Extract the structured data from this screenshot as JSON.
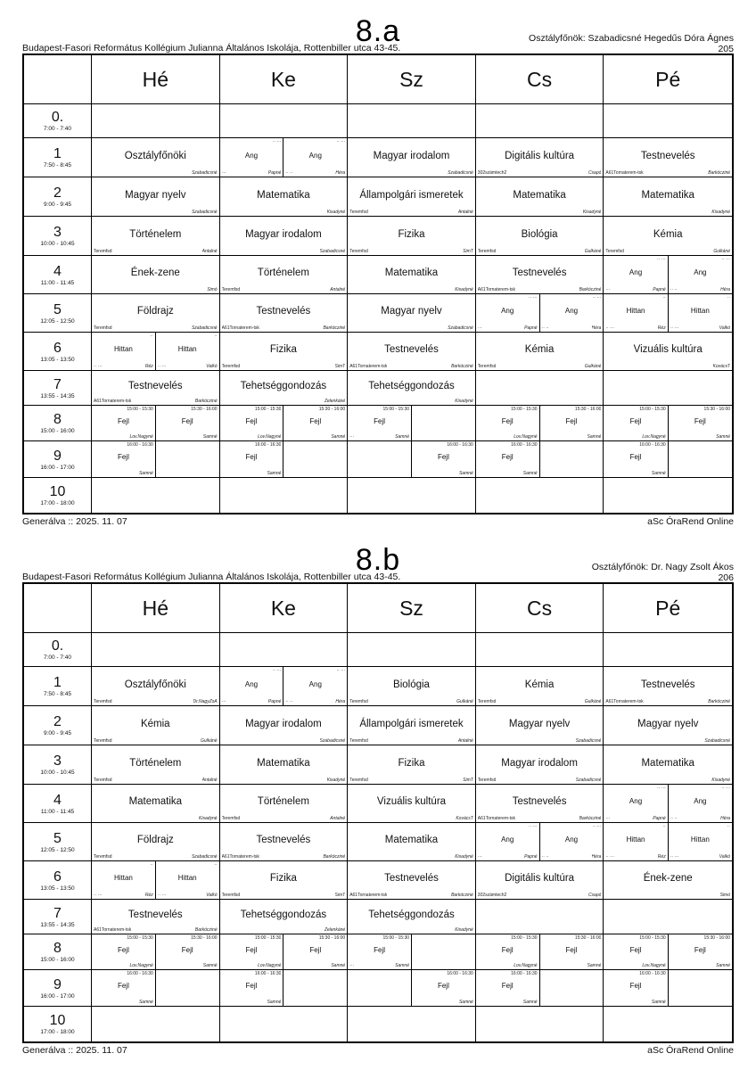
{
  "page": {
    "background": "#ffffff",
    "line_color": "#000000"
  },
  "footer": {
    "generated": "Generálva :: 2025. 11. 07",
    "app": "aSc ÓraRend Online"
  },
  "days": [
    "Hé",
    "Ke",
    "Sz",
    "Cs",
    "Pé"
  ],
  "periods": [
    {
      "label": "0.",
      "time": "7:00 - 7:40"
    },
    {
      "label": "1",
      "time": "7:50 - 8:45"
    },
    {
      "label": "2",
      "time": "9:00 - 9:45"
    },
    {
      "label": "3",
      "time": "10:00 - 10:45"
    },
    {
      "label": "4",
      "time": "11:00 - 11:45"
    },
    {
      "label": "5",
      "time": "12:05 - 12:50"
    },
    {
      "label": "6",
      "time": "13:05 - 13:50"
    },
    {
      "label": "7",
      "time": "13:55 - 14:35"
    },
    {
      "label": "8",
      "time": "15:00 - 16:00"
    },
    {
      "label": "9",
      "time": "16:00 - 17:00"
    },
    {
      "label": "10",
      "time": "17:00 - 18:00"
    }
  ],
  "timetables": [
    {
      "title": "8.a",
      "school": "Budapest-Fasori Református Kollégium Julianna Általános Iskolája, Rottenbiller utca 43-45.",
      "head_teacher": "Osztályfőnök: Szabadicsné Hegedűs Dóra Ágnes",
      "room": "205",
      "rows": [
        [
          null,
          null,
          null,
          null,
          null
        ],
        [
          {
            "s": "Osztályfőnöki",
            "br": "Szabadicsné"
          },
          {
            "split": [
              {
                "s": "Ang",
                "tr": "·· ···",
                "bl": "···",
                "br": "Papné"
              },
              {
                "s": "Ang",
                "tr": "·· ···",
                "bl": "·· ··",
                "br": "Héra"
              }
            ]
          },
          {
            "s": "Magyar irodalom",
            "br": "Szabadicsné"
          },
          {
            "s": "Digitális kultúra",
            "bl": "302számtech2",
            "br": "Csapó"
          },
          {
            "s": "Testnevelés",
            "bl": "A61Tornaterem-tsk",
            "br": "Barkócziné"
          }
        ],
        [
          {
            "s": "Magyar nyelv",
            "br": "Szabadicsné"
          },
          {
            "s": "Matematika",
            "br": "Kisadyné"
          },
          {
            "s": "Állampolgári ismeretek",
            "bl": "Teremfsd",
            "br": "Antalné"
          },
          {
            "s": "Matematika",
            "br": "Kisadyné"
          },
          {
            "s": "Matematika",
            "br": "Kisadyné"
          }
        ],
        [
          {
            "s": "Történelem",
            "bl": "Teremfsd",
            "br": "Antalné"
          },
          {
            "s": "Magyar irodalom",
            "br": "Szabadicsné"
          },
          {
            "s": "Fizika",
            "bl": "Teremfsd",
            "br": "SimT"
          },
          {
            "s": "Biológia",
            "bl": "Teremfsd",
            "br": "Gulkáné"
          },
          {
            "s": "Kémia",
            "bl": "Teremfsd",
            "br": "Gulkáné"
          }
        ],
        [
          {
            "s": "Ének-zene",
            "br": "Simó"
          },
          {
            "s": "Történelem",
            "bl": "Teremfsd",
            "br": "Antalné"
          },
          {
            "s": "Matematika",
            "br": "Kisadyné"
          },
          {
            "s": "Testnevelés",
            "bl": "A61Tornaterem-tsk",
            "br": "Barkócziné"
          },
          {
            "split": [
              {
                "s": "Ang",
                "tr": "·· ···",
                "bl": "···",
                "br": "Papné"
              },
              {
                "s": "Ang",
                "tr": "·· ···",
                "bl": "·· ··",
                "br": "Héra"
              }
            ]
          }
        ],
        [
          {
            "s": "Földrajz",
            "bl": "Teremfsd",
            "br": "Szabadicsné"
          },
          {
            "s": "Testnevelés",
            "bl": "A61Tornaterem-tsk",
            "br": "Barkócziné"
          },
          {
            "s": "Magyar nyelv",
            "br": "Szabadicsné"
          },
          {
            "split": [
              {
                "s": "Ang",
                "tr": "·· ···",
                "bl": "···",
                "br": "Papné"
              },
              {
                "s": "Ang",
                "tr": "·· ···",
                "bl": "·· ··",
                "br": "Héra"
              }
            ]
          },
          {
            "split": [
              {
                "s": "Hittan",
                "tr": "··",
                "bl": "·· ···",
                "br": "Réz"
              },
              {
                "s": "Hittan",
                "tr": "··",
                "bl": "·· ···",
                "br": "Valkó"
              }
            ]
          }
        ],
        [
          {
            "split": [
              {
                "s": "Hittan",
                "tr": "··",
                "bl": "·· ···",
                "br": "Réz"
              },
              {
                "s": "Hittan",
                "tr": "··",
                "bl": "·· ···",
                "br": "Valkó"
              }
            ]
          },
          {
            "s": "Fizika",
            "bl": "Teremfsd",
            "br": "SimT"
          },
          {
            "s": "Testnevelés",
            "bl": "A61Tornaterem-tsk",
            "br": "Barkócziné"
          },
          {
            "s": "Kémia",
            "bl": "Teremfsd",
            "br": "Gulkáné"
          },
          {
            "s": "Vizuális kultúra",
            "br": "KovácsT"
          }
        ],
        [
          {
            "s": "Testnevelés",
            "bl": "A61Tornaterem-tsk",
            "br": "Barkócziné"
          },
          {
            "s": "Tehetséggondozás",
            "br": "Zelenkáné"
          },
          {
            "s": "Tehetséggondozás",
            "br": "Kisadyné"
          },
          null,
          null
        ],
        [
          {
            "split": [
              {
                "s": "Fejl",
                "tr": "15:00 - 15:30",
                "br": "Lov.Nagyné"
              },
              {
                "s": "Fejl",
                "tr": "15:30 - 16:00",
                "br": "Samné"
              }
            ]
          },
          {
            "split": [
              {
                "s": "Fejl",
                "tr": "15:00 - 15:30",
                "br": "Lov.Nagyné"
              },
              {
                "s": "Fejl",
                "tr": "15:30 - 16:00",
                "br": "Samné"
              }
            ]
          },
          {
            "split": [
              {
                "s": "Fejl",
                "tr": "15:00 - 15:30",
                "bl": "···",
                "br": "Samné"
              },
              null
            ]
          },
          {
            "split": [
              {
                "s": "Fejl",
                "tr": "15:00 - 15:30",
                "br": "Lov.Nagyné"
              },
              {
                "s": "Fejl",
                "tr": "15:30 - 16:00",
                "br": "Samné"
              }
            ]
          },
          {
            "split": [
              {
                "s": "Fejl",
                "tr": "15:00 - 15:30",
                "br": "Lov.Nagyné"
              },
              {
                "s": "Fejl",
                "tr": "15:30 - 16:00",
                "br": "Samné"
              }
            ]
          }
        ],
        [
          {
            "split": [
              {
                "s": "Fejl",
                "tr": "16:00 - 16:30",
                "br": "Samné"
              },
              null
            ]
          },
          {
            "split": [
              {
                "s": "Fejl",
                "tr": "16:00 - 16:30",
                "br": "Samné"
              },
              null
            ]
          },
          {
            "split": [
              null,
              {
                "s": "Fejl",
                "tr": "16:00 - 16:30",
                "br": "Samné"
              }
            ]
          },
          {
            "split": [
              {
                "s": "Fejl",
                "tr": "16:00 - 16:30",
                "br": "Samné"
              },
              null
            ]
          },
          {
            "split": [
              {
                "s": "Fejl",
                "tr": "16:00 - 16:30",
                "br": "Samné"
              },
              null
            ]
          }
        ],
        [
          null,
          null,
          null,
          null,
          null
        ]
      ]
    },
    {
      "title": "8.b",
      "school": "Budapest-Fasori Református Kollégium Julianna Általános Iskolája, Rottenbiller utca 43-45.",
      "head_teacher": "Osztályfőnök: Dr. Nagy Zsolt Ákos",
      "room": "206",
      "rows": [
        [
          null,
          null,
          null,
          null,
          null
        ],
        [
          {
            "s": "Osztályfőnöki",
            "bl": "Teremfsd",
            "br": "Dr.NagyZsÁ"
          },
          {
            "split": [
              {
                "s": "Ang",
                "tr": "·· ···",
                "bl": "···",
                "br": "Papné"
              },
              {
                "s": "Ang",
                "tr": "·· ···",
                "bl": "·· ··",
                "br": "Héra"
              }
            ]
          },
          {
            "s": "Biológia",
            "bl": "Teremfsd",
            "br": "Gulkáné"
          },
          {
            "s": "Kémia",
            "bl": "Teremfsd",
            "br": "Gulkáné"
          },
          {
            "s": "Testnevelés",
            "bl": "A61Tornaterem-tsk",
            "br": "Barkócziné"
          }
        ],
        [
          {
            "s": "Kémia",
            "bl": "Teremfsd",
            "br": "Gulkáné"
          },
          {
            "s": "Magyar irodalom",
            "br": "Szabadicsné"
          },
          {
            "s": "Állampolgári ismeretek",
            "bl": "Teremfsd",
            "br": "Antalné"
          },
          {
            "s": "Magyar nyelv",
            "br": "Szabadicsné"
          },
          {
            "s": "Magyar nyelv",
            "br": "Szabadicsné"
          }
        ],
        [
          {
            "s": "Történelem",
            "bl": "Teremfsd",
            "br": "Antalné"
          },
          {
            "s": "Matematika",
            "br": "Kisadyné"
          },
          {
            "s": "Fizika",
            "bl": "Teremfsd",
            "br": "SimT"
          },
          {
            "s": "Magyar irodalom",
            "bl": "Teremfsd",
            "br": "Szabadicsné"
          },
          {
            "s": "Matematika",
            "br": "Kisadyné"
          }
        ],
        [
          {
            "s": "Matematika",
            "br": "Kisadyné"
          },
          {
            "s": "Történelem",
            "bl": "Teremfsd",
            "br": "Antalné"
          },
          {
            "s": "Vizuális kultúra",
            "br": "KovácsT"
          },
          {
            "s": "Testnevelés",
            "bl": "A61Tornaterem-tsk",
            "br": "Barkócziné"
          },
          {
            "split": [
              {
                "s": "Ang",
                "tr": "·· ···",
                "bl": "···",
                "br": "Papné"
              },
              {
                "s": "Ang",
                "tr": "·· ···",
                "bl": "·· ··",
                "br": "Héra"
              }
            ]
          }
        ],
        [
          {
            "s": "Földrajz",
            "bl": "Teremfsd",
            "br": "Szabadicsné"
          },
          {
            "s": "Testnevelés",
            "bl": "A61Tornaterem-tsk",
            "br": "Barkócziné"
          },
          {
            "s": "Matematika",
            "br": "Kisadyné"
          },
          {
            "split": [
              {
                "s": "Ang",
                "tr": "·· ···",
                "bl": "···",
                "br": "Papné"
              },
              {
                "s": "Ang",
                "tr": "·· ···",
                "bl": "·· ··",
                "br": "Héra"
              }
            ]
          },
          {
            "split": [
              {
                "s": "Hittan",
                "tr": "··",
                "bl": "·· ···",
                "br": "Réz"
              },
              {
                "s": "Hittan",
                "tr": "··",
                "bl": "·· ···",
                "br": "Valkó"
              }
            ]
          }
        ],
        [
          {
            "split": [
              {
                "s": "Hittan",
                "tr": "··",
                "bl": "·· ···",
                "br": "Réz"
              },
              {
                "s": "Hittan",
                "tr": "··",
                "bl": "·· ···",
                "br": "Valkó"
              }
            ]
          },
          {
            "s": "Fizika",
            "bl": "Teremfsd",
            "br": "SimT"
          },
          {
            "s": "Testnevelés",
            "bl": "A61Tornaterem-tsk",
            "br": "Barkócziné"
          },
          {
            "s": "Digitális kultúra",
            "bl": "302számtech2",
            "br": "Csapó"
          },
          {
            "s": "Ének-zene",
            "br": "Simó"
          }
        ],
        [
          {
            "s": "Testnevelés",
            "bl": "A61Tornaterem-tsk",
            "br": "Barkócziné"
          },
          {
            "s": "Tehetséggondozás",
            "br": "Zelenkáné"
          },
          {
            "s": "Tehetséggondozás",
            "br": "Kisadyné"
          },
          null,
          null
        ],
        [
          {
            "split": [
              {
                "s": "Fejl",
                "tr": "15:00 - 15:30",
                "br": "Lov.Nagyné"
              },
              {
                "s": "Fejl",
                "tr": "15:30 - 16:00",
                "br": "Samné"
              }
            ]
          },
          {
            "split": [
              {
                "s": "Fejl",
                "tr": "15:00 - 15:30",
                "br": "Lov.Nagyné"
              },
              {
                "s": "Fejl",
                "tr": "15:30 - 16:00",
                "br": "Samné"
              }
            ]
          },
          {
            "split": [
              {
                "s": "Fejl",
                "tr": "15:00 - 15:30",
                "bl": "···",
                "br": "Samné"
              },
              null
            ]
          },
          {
            "split": [
              {
                "s": "Fejl",
                "tr": "15:00 - 15:30",
                "br": "Lov.Nagyné"
              },
              {
                "s": "Fejl",
                "tr": "15:30 - 16:00",
                "br": "Samné"
              }
            ]
          },
          {
            "split": [
              {
                "s": "Fejl",
                "tr": "15:00 - 15:30",
                "br": "Lov.Nagyné"
              },
              {
                "s": "Fejl",
                "tr": "15:30 - 16:00",
                "br": "Samné"
              }
            ]
          }
        ],
        [
          {
            "split": [
              {
                "s": "Fejl",
                "tr": "16:00 - 16:30",
                "br": "Samné"
              },
              null
            ]
          },
          {
            "split": [
              {
                "s": "Fejl",
                "tr": "16:00 - 16:30",
                "br": "Samné"
              },
              null
            ]
          },
          {
            "split": [
              null,
              {
                "s": "Fejl",
                "tr": "16:00 - 16:30",
                "br": "Samné"
              }
            ]
          },
          {
            "split": [
              {
                "s": "Fejl",
                "tr": "16:00 - 16:30",
                "br": "Samné"
              },
              null
            ]
          },
          {
            "split": [
              {
                "s": "Fejl",
                "tr": "16:00 - 16:30",
                "br": "Samné"
              },
              null
            ]
          }
        ],
        [
          null,
          null,
          null,
          null,
          null
        ]
      ]
    }
  ]
}
